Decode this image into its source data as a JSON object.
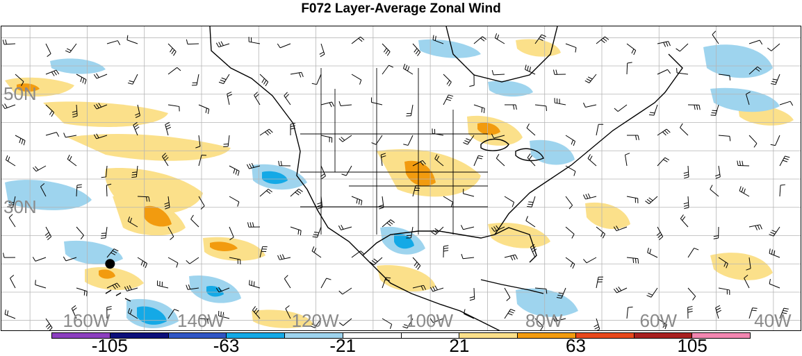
{
  "title": "F072 Layer-Average Zonal Wind",
  "lat_labels": [
    {
      "text": "50N",
      "lat": 50
    },
    {
      "text": "30N",
      "lat": 30
    }
  ],
  "lon_labels": [
    {
      "text": "160W",
      "lon": -160
    },
    {
      "text": "140W",
      "lon": -140
    },
    {
      "text": "120W",
      "lon": -120
    },
    {
      "text": "100W",
      "lon": -100
    },
    {
      "text": "80W",
      "lon": -80
    },
    {
      "text": "60W",
      "lon": -60
    },
    {
      "text": "40W",
      "lon": -40
    }
  ],
  "colorbar": {
    "colors": [
      "#8c3fbf",
      "#0c0f7a",
      "#2f55c4",
      "#14a9e6",
      "#9ed4ee",
      "#ffffff",
      "#ffffff",
      "#fbe08a",
      "#f29b0f",
      "#e8481c",
      "#a81f1f",
      "#f286b0"
    ],
    "labels": [
      {
        "text": "-105",
        "value": -105
      },
      {
        "text": "-63",
        "value": -63
      },
      {
        "text": "-21",
        "value": -21
      },
      {
        "text": "21",
        "value": 21
      },
      {
        "text": "63",
        "value": 63
      },
      {
        "text": "105",
        "value": 105
      }
    ],
    "boundaries": [
      -126,
      -105,
      -84,
      -63,
      -42,
      -21,
      0,
      21,
      42,
      63,
      84,
      105,
      126
    ]
  },
  "map": {
    "projection": "cylindrical",
    "lon_range": [
      -175,
      -35
    ],
    "lat_range": [
      8,
      62
    ],
    "gridlines": true,
    "grid_color": "#b5b5b5",
    "station_marker": {
      "lon": -156,
      "lat": 20
    }
  }
}
